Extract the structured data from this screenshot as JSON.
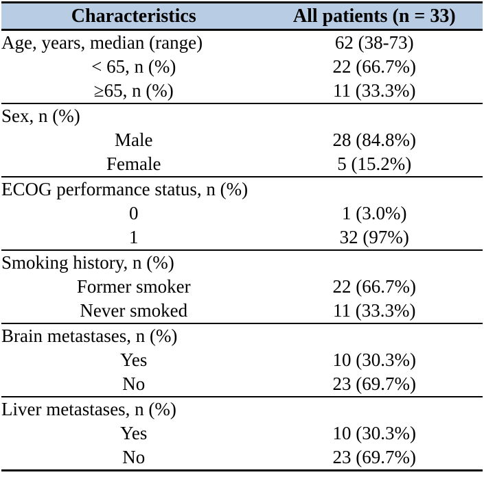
{
  "page": {
    "background": "#ffffff"
  },
  "table": {
    "header_bg": "#b8cce4",
    "border_color": "#000000",
    "header": {
      "col1": "Characteristics",
      "col2": "All patients (n = 33)"
    },
    "sections": [
      {
        "rows": [
          {
            "label": "Age, years, median (range)",
            "value": "62 (38-73)"
          },
          {
            "label": "< 65, n (%)",
            "value": "22 (66.7%)"
          },
          {
            "label": "≥65, n (%)",
            "value": "11 (33.3%)"
          }
        ]
      },
      {
        "rows": [
          {
            "label": "Sex, n (%)",
            "value": ""
          },
          {
            "label": "Male",
            "value": "28 (84.8%)"
          },
          {
            "label": "Female",
            "value": "5 (15.2%)"
          }
        ]
      },
      {
        "rows": [
          {
            "label": "ECOG performance status, n (%)",
            "value": ""
          },
          {
            "label": "0",
            "value": "1 (3.0%)"
          },
          {
            "label": "1",
            "value": "32 (97%)"
          }
        ]
      },
      {
        "rows": [
          {
            "label": "Smoking history, n (%)",
            "value": ""
          },
          {
            "label": "Former smoker",
            "value": "22 (66.7%)"
          },
          {
            "label": "Never smoked",
            "value": "11 (33.3%)"
          }
        ]
      },
      {
        "rows": [
          {
            "label": "Brain metastases, n (%)",
            "value": ""
          },
          {
            "label": "Yes",
            "value": "10 (30.3%)"
          },
          {
            "label": "No",
            "value": "23 (69.7%)"
          }
        ]
      },
      {
        "rows": [
          {
            "label": "Liver metastases, n (%)",
            "value": ""
          },
          {
            "label": "Yes",
            "value": "10 (30.3%)"
          },
          {
            "label": "No",
            "value": "23 (69.7%)"
          }
        ]
      }
    ]
  }
}
